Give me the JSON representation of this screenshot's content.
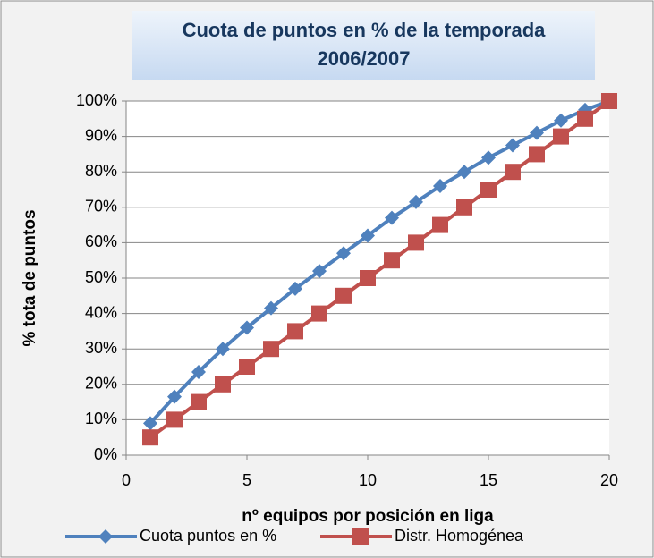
{
  "chart_data": {
    "type": "line",
    "title": "Cuota de puntos en % de la temporada 2006/2007",
    "x_label": "nº equipos por posición en liga",
    "y_label": "% tota de puntos",
    "x": [
      1,
      2,
      3,
      4,
      5,
      6,
      7,
      8,
      9,
      10,
      11,
      12,
      13,
      14,
      15,
      16,
      17,
      18,
      19,
      20
    ],
    "series": [
      {
        "name": "Cuota puntos en %",
        "color": "#4f81bd",
        "marker": "diamond",
        "values": [
          9,
          16.5,
          23.5,
          30,
          36,
          41.5,
          47,
          52,
          57,
          62,
          67,
          71.5,
          76,
          80,
          84,
          87.5,
          91,
          94.5,
          97.5,
          100
        ]
      },
      {
        "name": "Distr. Homogénea",
        "color": "#c0504d",
        "marker": "square",
        "values": [
          5,
          10,
          15,
          20,
          25,
          30,
          35,
          40,
          45,
          50,
          55,
          60,
          65,
          70,
          75,
          80,
          85,
          90,
          95,
          100
        ]
      }
    ],
    "xlim": [
      0,
      20
    ],
    "xticks": [
      0,
      5,
      10,
      15,
      20
    ],
    "ylim": [
      0,
      100
    ],
    "yticks": [
      {
        "value": 0,
        "label": "0%"
      },
      {
        "value": 10,
        "label": "10%"
      },
      {
        "value": 20,
        "label": "20%"
      },
      {
        "value": 30,
        "label": "30%"
      },
      {
        "value": 40,
        "label": "40%"
      },
      {
        "value": 50,
        "label": "50%"
      },
      {
        "value": 60,
        "label": "60%"
      },
      {
        "value": 70,
        "label": "70%"
      },
      {
        "value": 80,
        "label": "80%"
      },
      {
        "value": 90,
        "label": "90%"
      },
      {
        "value": 100,
        "label": "100%"
      }
    ],
    "grid": true,
    "legend": "bottom"
  }
}
